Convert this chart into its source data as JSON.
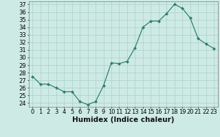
{
  "x": [
    0,
    1,
    2,
    3,
    4,
    5,
    6,
    7,
    8,
    9,
    10,
    11,
    12,
    13,
    14,
    15,
    16,
    17,
    18,
    19,
    20,
    21,
    22,
    23
  ],
  "y": [
    27.5,
    26.5,
    26.5,
    26.0,
    25.5,
    25.5,
    24.2,
    23.8,
    24.2,
    26.3,
    29.3,
    29.2,
    29.5,
    31.3,
    34.0,
    34.8,
    34.8,
    35.8,
    37.0,
    36.5,
    35.2,
    32.5,
    31.8,
    31.2
  ],
  "line_color": "#2e7d6e",
  "marker": "D",
  "marker_size": 2.2,
  "bg_color": "#ceeae4",
  "grid_color": "#aed4cc",
  "xlabel": "Humidex (Indice chaleur)",
  "xlabel_fontsize": 7.5,
  "tick_fontsize": 6,
  "ylim_min": 23.5,
  "ylim_max": 37.4,
  "xlim_min": -0.5,
  "xlim_max": 23.5,
  "yticks": [
    24,
    25,
    26,
    27,
    28,
    29,
    30,
    31,
    32,
    33,
    34,
    35,
    36,
    37
  ],
  "xticks": [
    0,
    1,
    2,
    3,
    4,
    5,
    6,
    7,
    8,
    9,
    10,
    11,
    12,
    13,
    14,
    15,
    16,
    17,
    18,
    19,
    20,
    21,
    22,
    23
  ]
}
